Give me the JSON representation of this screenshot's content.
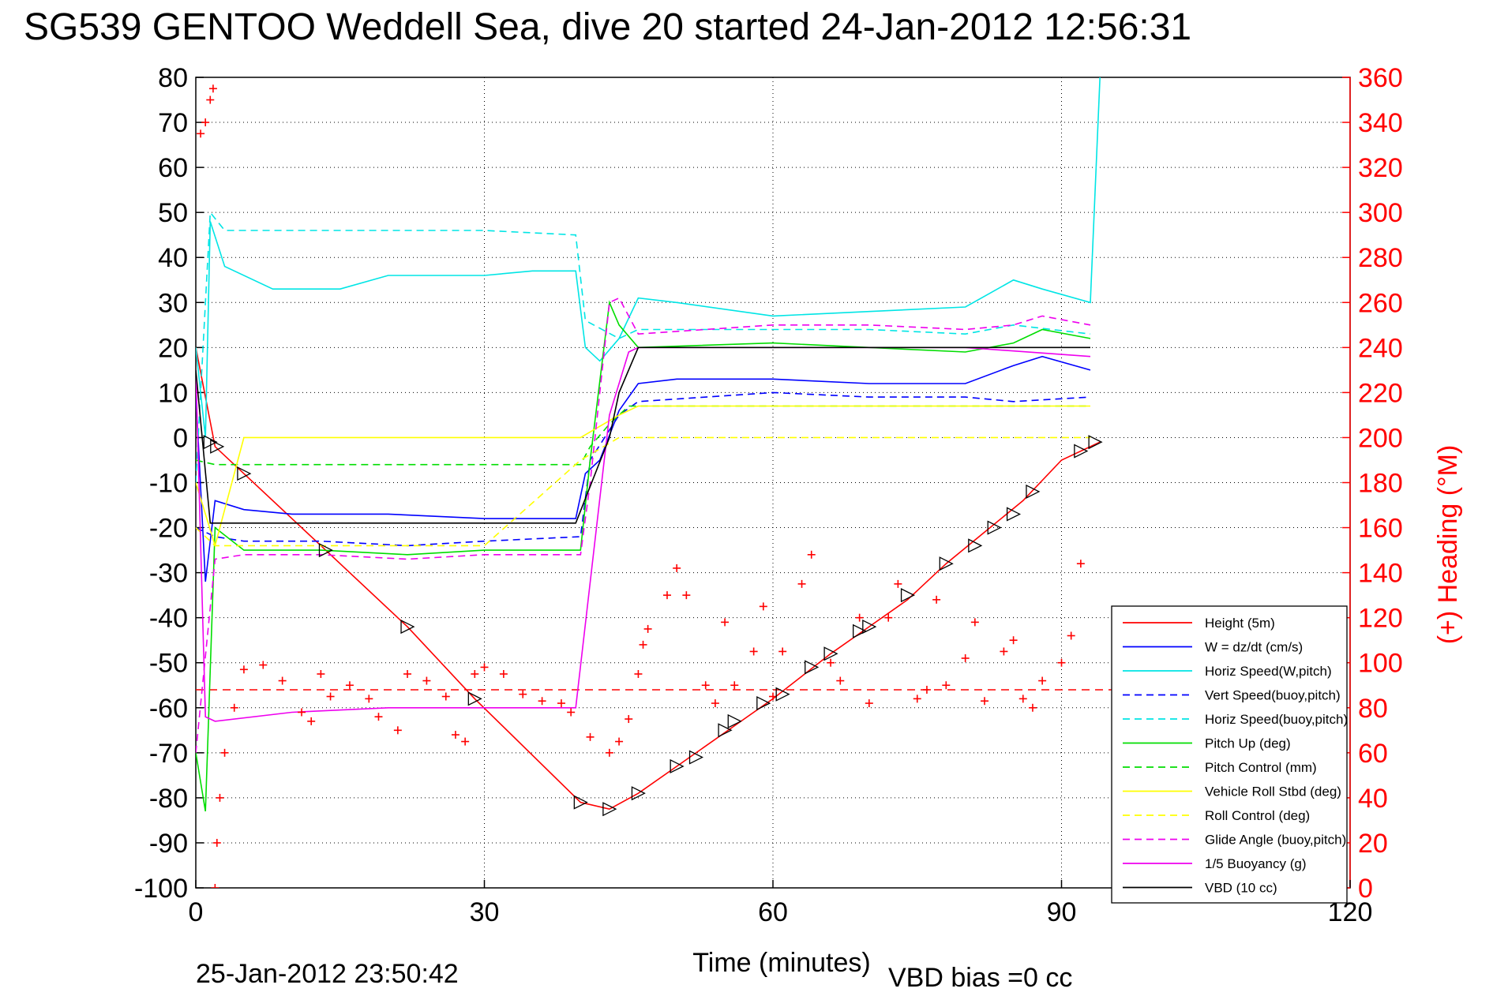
{
  "chart_data": {
    "type": "line",
    "title": "SG539 GENTOO Weddell Sea, dive 20 started 24-Jan-2012 12:56:31",
    "xlabel": "Time (minutes)",
    "ylabel_right": "(+) Heading (°M)",
    "footer_date": "25-Jan-2012 23:50:42",
    "footer_vbd": "VBD bias =0 cc",
    "xlim": [
      0,
      120
    ],
    "ylim": [
      -100,
      80
    ],
    "ylim_right": [
      0,
      360
    ],
    "x_ticks": [
      0,
      30,
      60,
      90,
      120
    ],
    "y_ticks": [
      80,
      70,
      60,
      50,
      40,
      30,
      20,
      10,
      0,
      -10,
      -20,
      -30,
      -40,
      -50,
      -60,
      -70,
      -80,
      -90,
      -100
    ],
    "y_ticks_right": [
      360,
      340,
      320,
      300,
      280,
      260,
      240,
      220,
      200,
      180,
      160,
      140,
      120,
      100,
      80,
      60,
      40,
      20,
      0
    ],
    "grid": true,
    "legend_position": "bottom-right",
    "series": [
      {
        "name": "Height (5m)",
        "color": "#ff0000",
        "dash": "solid",
        "x": [
          0,
          2,
          13.5,
          22,
          29,
          40,
          43,
          46,
          50,
          56,
          60,
          66,
          70,
          74,
          78,
          82,
          86,
          90,
          94
        ],
        "y": [
          20,
          -2,
          -25,
          -42,
          -58,
          -81,
          -82.5,
          -79,
          -73,
          -64,
          -58,
          -48,
          -42,
          -36,
          -28,
          -21,
          -14,
          -5,
          -1
        ]
      },
      {
        "name": "W = dz/dt (cm/s)",
        "color": "#0000ff",
        "dash": "solid",
        "x": [
          0,
          1,
          2,
          5,
          10,
          20,
          30,
          39.5,
          40.5,
          42,
          44,
          46,
          50,
          60,
          70,
          80,
          85,
          88,
          93
        ],
        "y": [
          10,
          -32,
          -14,
          -16,
          -17,
          -17,
          -18,
          -18,
          -8,
          -5,
          6,
          12,
          13,
          13,
          12,
          12,
          16,
          18,
          15
        ]
      },
      {
        "name": "Horiz Speed(W,pitch)",
        "color": "#00e5e5",
        "dash": "solid",
        "x": [
          0,
          1,
          1.5,
          3,
          8,
          15,
          20,
          30,
          35,
          39.5,
          40.5,
          42,
          44,
          46,
          50,
          60,
          70,
          80,
          85,
          88,
          93,
          94
        ],
        "y": [
          20,
          0,
          48,
          38,
          33,
          33,
          36,
          36,
          37,
          37,
          20,
          17,
          22,
          31,
          30,
          27,
          28,
          29,
          35,
          33,
          30,
          80
        ]
      },
      {
        "name": "Vert Speed(buoy,pitch)",
        "color": "#0000ff",
        "dash": "dashed",
        "x": [
          0,
          2,
          5,
          13,
          22,
          30,
          40,
          41,
          44,
          46,
          60,
          70,
          80,
          85,
          93
        ],
        "y": [
          -20,
          -22,
          -23,
          -23,
          -24,
          -23,
          -22,
          -5,
          5,
          8,
          10,
          9,
          9,
          8,
          9
        ]
      },
      {
        "name": "Horiz Speed(buoy,pitch)",
        "color": "#00e5e5",
        "dash": "dashed",
        "x": [
          0,
          1.5,
          3,
          13,
          22,
          30,
          39.5,
          40.5,
          44,
          46,
          60,
          70,
          80,
          85,
          93
        ],
        "y": [
          -10,
          50,
          46,
          46,
          46,
          46,
          45,
          26,
          22,
          24,
          24,
          24,
          23,
          25,
          23
        ]
      },
      {
        "name": "Pitch Up (deg)",
        "color": "#00dd00",
        "dash": "solid",
        "x": [
          0,
          1,
          2,
          5,
          13,
          22,
          30,
          40,
          41,
          43,
          44,
          46,
          60,
          70,
          80,
          85,
          88,
          93
        ],
        "y": [
          -70,
          -83,
          -20,
          -25,
          -25,
          -26,
          -25,
          -25,
          -5,
          30,
          25,
          20,
          21,
          20,
          19,
          21,
          24,
          22
        ]
      },
      {
        "name": "Pitch Control (mm)",
        "color": "#00dd00",
        "dash": "dashed",
        "x": [
          0,
          2,
          10,
          30,
          40,
          41,
          43,
          45,
          60,
          70,
          80,
          93
        ],
        "y": [
          -5,
          -6,
          -6,
          -6,
          -6,
          -2,
          3,
          7,
          7,
          7,
          7,
          7
        ]
      },
      {
        "name": "Vehicle Roll Stbd (deg)",
        "color": "#ffff00",
        "dash": "solid",
        "x": [
          0,
          2,
          5,
          13,
          22,
          30,
          40,
          44,
          46,
          50,
          60,
          70,
          80,
          90,
          93
        ],
        "y": [
          -10,
          -24,
          0,
          0,
          0,
          0,
          0,
          5,
          7,
          7,
          7,
          7,
          7,
          7,
          7
        ]
      },
      {
        "name": "Roll Control (deg)",
        "color": "#ffff00",
        "dash": "dashed",
        "x": [
          0,
          2,
          30,
          40,
          44,
          46,
          93
        ],
        "y": [
          -20,
          -24,
          -24,
          -5,
          0,
          0,
          0
        ]
      },
      {
        "name": "Glide Angle (buoy,pitch)",
        "color": "#ee00ee",
        "dash": "dashed",
        "x": [
          0,
          2,
          5,
          13,
          22,
          30,
          40,
          41,
          43,
          44,
          46,
          60,
          70,
          80,
          85,
          88,
          93
        ],
        "y": [
          -70,
          -27,
          -26,
          -26,
          -27,
          -26,
          -26,
          -10,
          30,
          31,
          23,
          25,
          25,
          24,
          25,
          27,
          25
        ]
      },
      {
        "name": "1/5 Buoyancy (g)",
        "color": "#ee00ee",
        "dash": "solid",
        "x": [
          0,
          1,
          2,
          10,
          20,
          30,
          39.5,
          43,
          45,
          46,
          60,
          80,
          93
        ],
        "y": [
          15,
          -62,
          -63,
          -61,
          -60,
          -60,
          -60,
          5,
          19,
          20,
          20,
          20,
          18
        ]
      },
      {
        "name": "VBD (10 cc)",
        "color": "#000000",
        "dash": "solid",
        "x": [
          0,
          1.5,
          2.5,
          10,
          20,
          30,
          39.5,
          43,
          44,
          46,
          60,
          80,
          93
        ],
        "y": [
          15,
          -19,
          -19,
          -19,
          -19,
          -19,
          -19,
          0,
          10,
          20,
          20,
          20,
          20
        ]
      }
    ],
    "heading_series": {
      "name": "Heading",
      "color": "#ff0000",
      "marker": "+",
      "axis": "right",
      "x": [
        0.5,
        1,
        1.5,
        1.8,
        2,
        2.2,
        2.5,
        3,
        4,
        5,
        7,
        9,
        11,
        12,
        13,
        14,
        16,
        18,
        19,
        21,
        22,
        24,
        26,
        27,
        28,
        29,
        30,
        32,
        34,
        36,
        38,
        39,
        41,
        43,
        44,
        45,
        46,
        46.5,
        47,
        49,
        50,
        51,
        53,
        54,
        55,
        56,
        58,
        59,
        60,
        61,
        63,
        64,
        66,
        67,
        69,
        70,
        72,
        73,
        75,
        76,
        77,
        78,
        80,
        81,
        82,
        84,
        85,
        86,
        87,
        88,
        90,
        91,
        92
      ],
      "y": [
        335,
        340,
        350,
        355,
        0,
        20,
        40,
        60,
        80,
        97,
        99,
        92,
        78,
        74,
        95,
        85,
        90,
        84,
        76,
        70,
        95,
        92,
        85,
        68,
        65,
        95,
        98,
        95,
        86,
        83,
        82,
        78,
        67,
        60,
        65,
        75,
        95,
        108,
        115,
        130,
        142,
        130,
        90,
        82,
        118,
        90,
        105,
        125,
        85,
        105,
        135,
        148,
        100,
        92,
        120,
        82,
        120,
        135,
        84,
        88,
        128,
        90,
        102,
        118,
        83,
        105,
        110,
        84,
        80,
        92,
        100,
        112,
        144
      ]
    },
    "heading_reference": 88,
    "triangle_markers": {
      "x": [
        1.5,
        2.2,
        5,
        13.5,
        22,
        29,
        40,
        43,
        46,
        50,
        52,
        55,
        56,
        59,
        61,
        64,
        66,
        69,
        70,
        74,
        78,
        81,
        83,
        85,
        87,
        92,
        93.5
      ],
      "y": [
        -1,
        -2,
        -8,
        -25,
        -42,
        -58,
        -81,
        -82.5,
        -79,
        -73,
        -71,
        -65,
        -63,
        -59,
        -57,
        -51,
        -48,
        -43,
        -42,
        -35,
        -28,
        -24,
        -20,
        -17,
        -12,
        -3,
        -1
      ]
    }
  }
}
